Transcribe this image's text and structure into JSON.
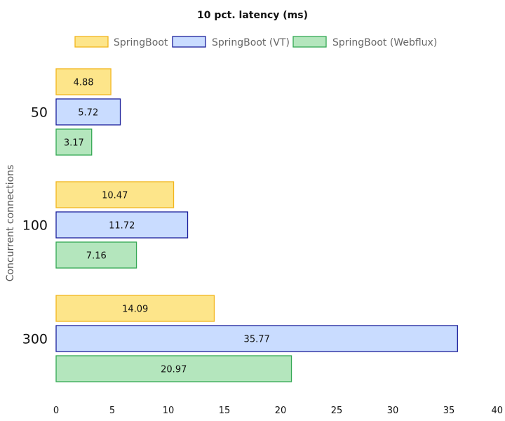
{
  "chart_data": {
    "type": "bar",
    "orientation": "horizontal",
    "title": "10 pct. latency (ms)",
    "ylabel": "Concurrent connections",
    "xlabel": "",
    "categories": [
      "50",
      "100",
      "300"
    ],
    "xlim": [
      0,
      40
    ],
    "xticks": [
      0,
      5,
      10,
      15,
      20,
      25,
      30,
      35,
      40
    ],
    "grid": false,
    "legend_position": "top",
    "series": [
      {
        "name": "SpringBoot",
        "values": [
          4.88,
          10.47,
          14.09
        ],
        "fill": "#fde58a",
        "stroke": "#f2b51d"
      },
      {
        "name": "SpringBoot (VT)",
        "values": [
          5.72,
          11.72,
          35.77
        ],
        "fill": "#c9dcff",
        "stroke": "#1b1f9c"
      },
      {
        "name": "SpringBoot (Webflux)",
        "values": [
          3.17,
          7.16,
          20.97
        ],
        "fill": "#b4e6bd",
        "stroke": "#34a853"
      }
    ]
  }
}
